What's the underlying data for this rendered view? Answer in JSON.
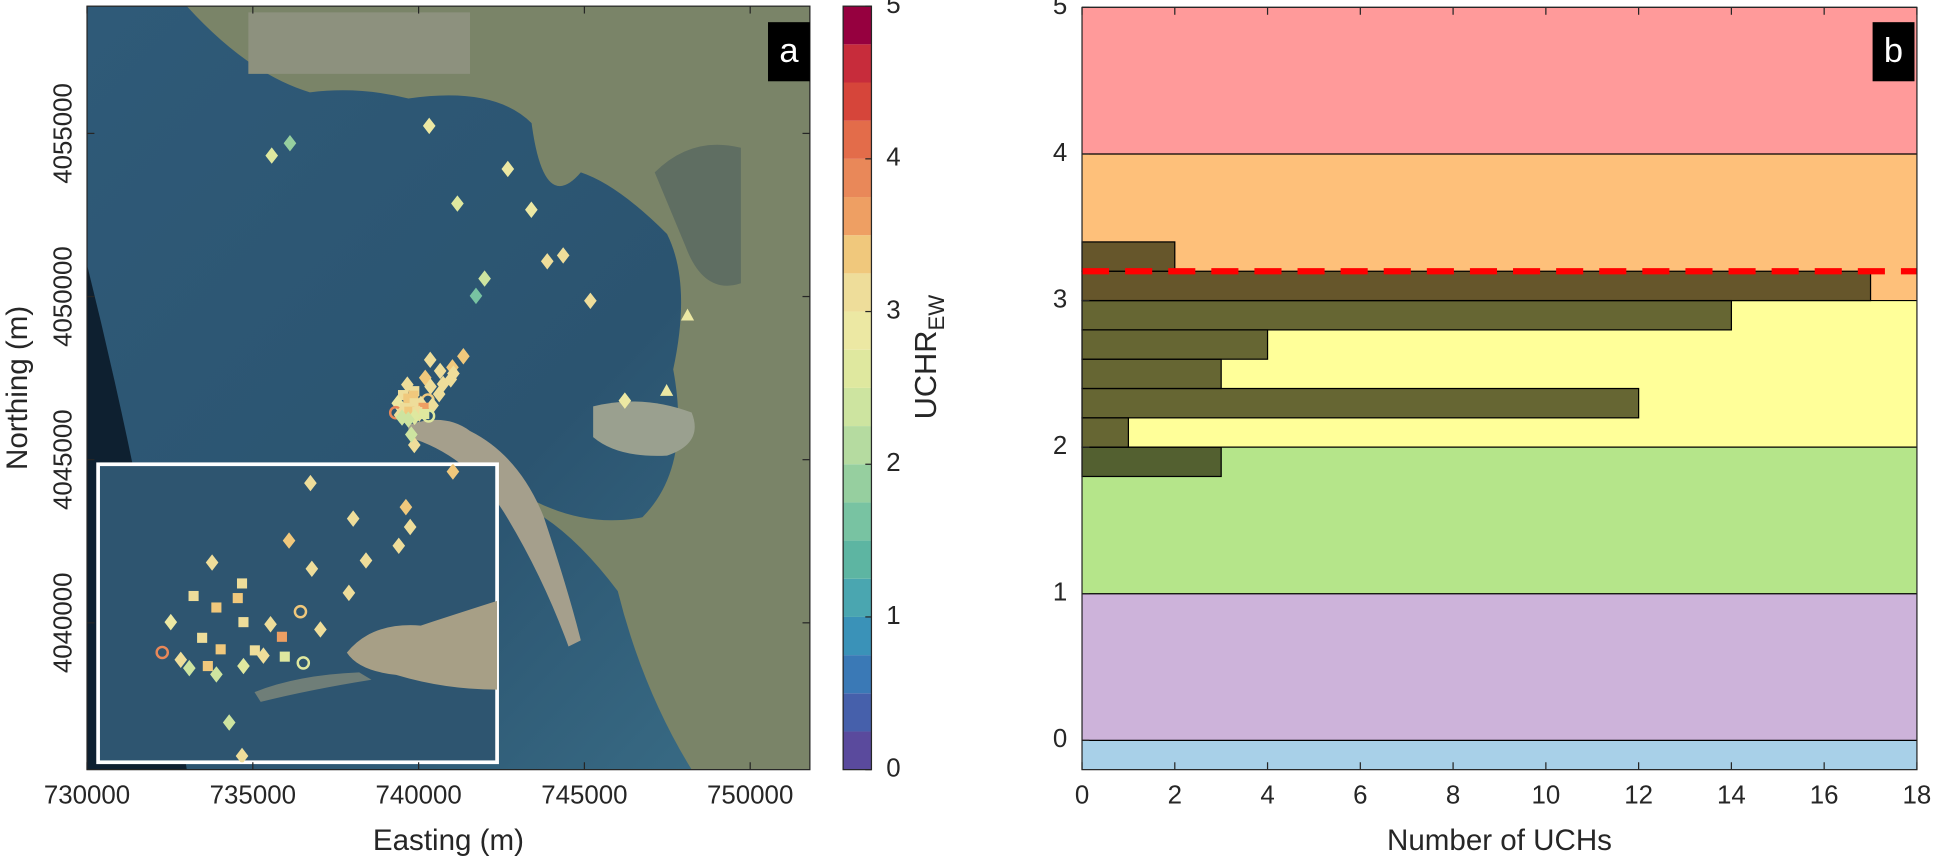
{
  "chart_data": [
    {
      "type": "scatter",
      "panel_label": "a",
      "xlabel": "Easting (m)",
      "ylabel": "Northing (m)",
      "xlim": [
        730000,
        751800
      ],
      "ylim": [
        4035500,
        4058900
      ],
      "xticks": [
        730000,
        735000,
        740000,
        745000,
        750000
      ],
      "yticks": [
        4040000,
        4045000,
        4050000,
        4055000
      ],
      "x": [
        735570,
        736120,
        740320,
        741170,
        742690,
        743400,
        743880,
        744360,
        741990,
        741730,
        745180,
        748110,
        747480,
        746220,
        739870,
        740350,
        740650,
        741020,
        741350,
        740200,
        740970,
        741050,
        740740,
        740360,
        739660,
        740620,
        739530,
        739690,
        739870,
        739840,
        740280,
        739370,
        739880,
        740070,
        740420,
        740150,
        739590,
        739720,
        739960,
        740020,
        739310,
        739440,
        739630,
        739500,
        739880,
        740170,
        740300,
        739690,
        739780
      ],
      "y": [
        4054320,
        4054700,
        4055230,
        4052850,
        4053910,
        4052660,
        4051080,
        4051260,
        4050550,
        4050020,
        4049870,
        4049420,
        4047110,
        4046810,
        4045450,
        4048060,
        4047720,
        4047830,
        4048170,
        4047510,
        4047460,
        4047640,
        4047320,
        4047240,
        4047300,
        4047010,
        4046980,
        4046870,
        4047100,
        4046960,
        4046830,
        4046730,
        4046730,
        4046710,
        4046660,
        4046590,
        4046580,
        4046470,
        4046460,
        4046410,
        4046440,
        4046370,
        4046310,
        4046290,
        4046310,
        4046400,
        4046340,
        4046230,
        4045770
      ],
      "values": [
        2.7,
        1.9,
        2.8,
        2.7,
        2.8,
        2.9,
        3.2,
        3.0,
        2.4,
        1.7,
        3.0,
        2.8,
        2.8,
        2.9,
        3.0,
        3.2,
        3.2,
        3.3,
        3.3,
        3.3,
        3.2,
        3.2,
        3.2,
        3.1,
        3.0,
        3.1,
        3.2,
        3.3,
        3.2,
        3.3,
        3.3,
        2.9,
        3.0,
        3.1,
        3.0,
        3.5,
        3.2,
        3.3,
        3.2,
        3.1,
        3.8,
        3.0,
        3.3,
        2.3,
        2.5,
        2.6,
        2.6,
        2.4,
        2.4
      ],
      "markers": [
        "diamond",
        "diamond",
        "diamond",
        "diamond",
        "diamond",
        "diamond",
        "diamond",
        "diamond",
        "diamond",
        "diamond",
        "diamond",
        "triangle",
        "triangle",
        "diamond",
        "diamond",
        "diamond",
        "diamond",
        "diamond",
        "diamond",
        "diamond",
        "diamond",
        "diamond",
        "diamond",
        "diamond",
        "diamond",
        "diamond",
        "square",
        "square",
        "square",
        "square",
        "circle",
        "diamond",
        "square",
        "diamond",
        "diamond",
        "square",
        "square",
        "square",
        "square",
        "diamond",
        "circle",
        "diamond",
        "square",
        "diamond",
        "diamond",
        "square",
        "circle",
        "diamond",
        "diamond"
      ],
      "colorbar": {
        "label": "UCHR",
        "label_subscript": "EW",
        "lim": [
          0,
          5
        ],
        "ticks": [
          0,
          1,
          2,
          3,
          4,
          5
        ],
        "colors": [
          "#5a4a9d",
          "#4660ab",
          "#3a79b6",
          "#3a92b8",
          "#4aa6b0",
          "#5db5a2",
          "#78c3a2",
          "#96cf9f",
          "#b5dba0",
          "#cde4a0",
          "#dfe89f",
          "#ece8a3",
          "#eedd9a",
          "#f0c87c",
          "#ee9f63",
          "#e98859",
          "#e36c4a",
          "#d6453a",
          "#c72c3b",
          "#96003f"
        ]
      },
      "inset": {
        "xlim": [
          738860,
          741660
        ],
        "ylim": [
          4045390,
          4048240
        ],
        "border_color": "#ffffff"
      }
    },
    {
      "type": "histogram",
      "orientation": "horizontal",
      "panel_label": "b",
      "xlabel": "Number of UCHs",
      "bins": [
        1.8,
        2.0,
        2.2,
        2.4,
        2.6,
        2.8,
        3.0,
        3.2,
        3.4
      ],
      "counts": [
        3,
        1,
        12,
        3,
        4,
        14,
        17,
        2
      ],
      "color": "#333311",
      "xlim": [
        0,
        18
      ],
      "ylim": [
        -0.2,
        5
      ],
      "xticks": [
        0,
        2,
        4,
        6,
        8,
        10,
        12,
        14,
        16,
        18
      ],
      "yticks": [
        0,
        1,
        2,
        3,
        4,
        5
      ],
      "bands": [
        {
          "from": -0.2,
          "to": 0,
          "color": "#a8d0e8"
        },
        {
          "from": 0,
          "to": 1,
          "color": "#cdb3da"
        },
        {
          "from": 1,
          "to": 2,
          "color": "#b5e58a"
        },
        {
          "from": 2,
          "to": 3,
          "color": "#ffff99"
        },
        {
          "from": 3,
          "to": 4,
          "color": "#fec07a"
        },
        {
          "from": 4,
          "to": 5,
          "color": "#ff9a9a"
        }
      ],
      "threshold": {
        "value": 3.2,
        "color": "#ff0000"
      }
    }
  ]
}
